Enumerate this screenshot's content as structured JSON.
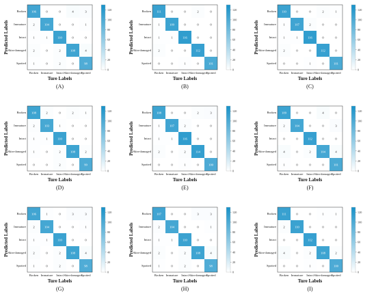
{
  "figure": {
    "colorbar_ticks": [
      "0",
      "20",
      "40",
      "60",
      "80",
      "100",
      "120"
    ],
    "colorbar_max": 130,
    "colors": {
      "low": "#ffffff",
      "high": "#1791c8",
      "line": "#333333",
      "text_dark": "#222222"
    }
  },
  "chart_data": [
    {
      "panel_label": "(A)",
      "type": "heatmap",
      "xlabel": "Ture Labels",
      "ylabel": "Predicted Labels",
      "x_categories": [
        "Broken",
        "Immature",
        "Intact",
        "Skin-damaged",
        "Spotted"
      ],
      "y_categories": [
        "Broken",
        "Immature",
        "Intact",
        "Skin-damaged",
        "Spotted"
      ],
      "values": [
        [
          106,
          0,
          0,
          4,
          3
        ],
        [
          2,
          104,
          0,
          0,
          1
        ],
        [
          1,
          1,
          110,
          0,
          0
        ],
        [
          2,
          0,
          2,
          108,
          4
        ],
        [
          1,
          0,
          2,
          0,
          98
        ]
      ]
    },
    {
      "panel_label": "(B)",
      "type": "heatmap",
      "xlabel": "Ture Labels",
      "ylabel": "Predicted Labels",
      "x_categories": [
        "Broken",
        "Immature",
        "Intact",
        "Skin-damaged",
        "Spotted"
      ],
      "y_categories": [
        "Broken",
        "Immature",
        "Intact",
        "Skin-damaged",
        "Spotted"
      ],
      "values": [
        [
          111,
          0,
          0,
          2,
          0
        ],
        [
          1,
          109,
          0,
          0,
          0
        ],
        [
          1,
          1,
          116,
          0,
          0
        ],
        [
          2,
          0,
          0,
          112,
          0
        ],
        [
          0,
          0,
          1,
          0,
          101
        ]
      ]
    },
    {
      "panel_label": "(C)",
      "type": "heatmap",
      "xlabel": "Ture Labels",
      "ylabel": "Predicted Labels",
      "x_categories": [
        "Broken",
        "Immature",
        "Intact",
        "Skin-damaged",
        "Spotted"
      ],
      "y_categories": [
        "Broken",
        "Immature",
        "Intact",
        "Skin-damaged",
        "Spotted"
      ],
      "values": [
        [
          110,
          0,
          0,
          2,
          1
        ],
        [
          1,
          107,
          2,
          0,
          0
        ],
        [
          1,
          1,
          116,
          0,
          0
        ],
        [
          2,
          0,
          0,
          112,
          0
        ],
        [
          0,
          0,
          1,
          0,
          101
        ]
      ]
    },
    {
      "panel_label": "(D)",
      "type": "heatmap",
      "xlabel": "Ture Labels",
      "ylabel": "Predicted Labels",
      "x_categories": [
        "Broken",
        "Immature",
        "Intact",
        "Skin-damaged",
        "Spotted"
      ],
      "y_categories": [
        "Broken",
        "Immature",
        "Intact",
        "Skin-damaged",
        "Spotted"
      ],
      "values": [
        [
          108,
          2,
          0,
          2,
          1
        ],
        [
          2,
          103,
          1,
          0,
          0
        ],
        [
          1,
          1,
          110,
          0,
          0
        ],
        [
          1,
          0,
          2,
          108,
          2
        ],
        [
          0,
          0,
          2,
          0,
          99
        ]
      ]
    },
    {
      "panel_label": "(E)",
      "type": "heatmap",
      "xlabel": "Ture Labels",
      "ylabel": "Predicted Labels",
      "x_categories": [
        "Broken",
        "Immature",
        "Intact",
        "Skin-damaged",
        "Spotted"
      ],
      "y_categories": [
        "Broken",
        "Immature",
        "Intact",
        "Skin-damaged",
        "Spotted"
      ],
      "values": [
        [
          108,
          0,
          0,
          2,
          3
        ],
        [
          1,
          107,
          2,
          0,
          0
        ],
        [
          1,
          1,
          116,
          0,
          0
        ],
        [
          2,
          0,
          2,
          114,
          0
        ],
        [
          0,
          0,
          1,
          0,
          100
        ]
      ]
    },
    {
      "panel_label": "(F)",
      "type": "heatmap",
      "xlabel": "Ture Labels",
      "ylabel": "Predicted Labels",
      "x_categories": [
        "Broken",
        "Immature",
        "Intact",
        "Skin-damaged",
        "Spotted"
      ],
      "y_categories": [
        "Broken",
        "Immature",
        "Intact",
        "Skin-damaged",
        "Spotted"
      ],
      "values": [
        [
          109,
          0,
          0,
          4,
          0
        ],
        [
          2,
          104,
          0,
          0,
          3
        ],
        [
          0,
          0,
          112,
          0,
          0
        ],
        [
          4,
          0,
          2,
          104,
          4
        ],
        [
          1,
          0,
          0,
          0,
          101
        ]
      ]
    },
    {
      "panel_label": "(G)",
      "type": "heatmap",
      "xlabel": "Ture Labels",
      "ylabel": "Predicted Labels",
      "x_categories": [
        "Broken",
        "Immature",
        "Intact",
        "Skin-damaged",
        "Spotted"
      ],
      "y_categories": [
        "Broken",
        "Immature",
        "Intact",
        "Skin-damaged",
        "Spotted"
      ],
      "values": [
        [
          106,
          1,
          0,
          3,
          3
        ],
        [
          2,
          104,
          0,
          0,
          1
        ],
        [
          1,
          1,
          110,
          0,
          0
        ],
        [
          2,
          0,
          2,
          108,
          4
        ],
        [
          1,
          0,
          2,
          0,
          98
        ]
      ]
    },
    {
      "panel_label": "(H)",
      "type": "heatmap",
      "xlabel": "Ture Labels",
      "ylabel": "Predicted Labels",
      "x_categories": [
        "Broken",
        "Immature",
        "Intact",
        "Skin-damaged",
        "Spotted"
      ],
      "y_categories": [
        "Broken",
        "Immature",
        "Intact",
        "Skin-damaged",
        "Spotted"
      ],
      "values": [
        [
          107,
          0,
          0,
          3,
          3
        ],
        [
          2,
          104,
          0,
          0,
          1
        ],
        [
          1,
          1,
          110,
          0,
          0
        ],
        [
          2,
          0,
          2,
          108,
          4
        ],
        [
          1,
          0,
          2,
          0,
          98
        ]
      ]
    },
    {
      "panel_label": "(I)",
      "type": "heatmap",
      "xlabel": "Ture Labels",
      "ylabel": "Predicted Labels",
      "x_categories": [
        "Broken",
        "Immature",
        "Intact",
        "Skin-damaged",
        "Spotted"
      ],
      "y_categories": [
        "Broken",
        "Immature",
        "Intact",
        "Skin-damaged",
        "Spotted"
      ],
      "values": [
        [
          111,
          0,
          0,
          1,
          1
        ],
        [
          2,
          110,
          0,
          0,
          0
        ],
        [
          0,
          0,
          112,
          0,
          0
        ],
        [
          4,
          0,
          2,
          108,
          2
        ],
        [
          0,
          0,
          1,
          0,
          100
        ]
      ]
    }
  ]
}
